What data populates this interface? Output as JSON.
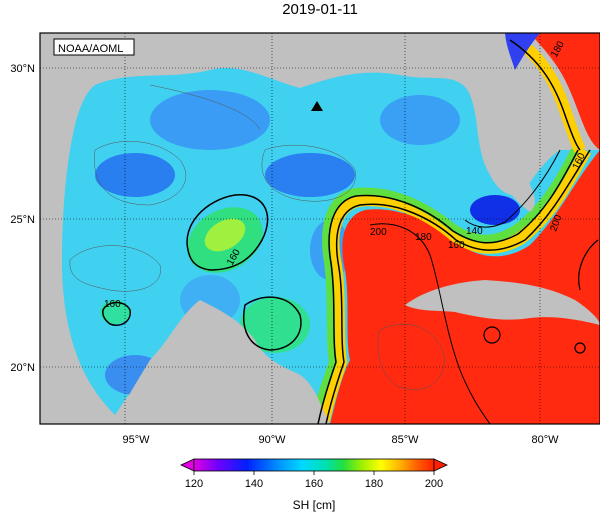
{
  "title": "2019-01-11",
  "credit": "NOAA/AOML",
  "lat_labels": [
    "30°N",
    "25°N",
    "20°N"
  ],
  "lon_labels": [
    "95°W",
    "90°W",
    "85°W",
    "80°W"
  ],
  "contour_labels": [
    "180",
    "160",
    "140",
    "160",
    "180",
    "200",
    "200",
    "160",
    "160"
  ],
  "colorbar": {
    "title": "SH [cm]",
    "ticks": [
      "120",
      "140",
      "160",
      "180",
      "200"
    ],
    "colors": [
      "#e000e0",
      "#7000ff",
      "#0020ff",
      "#0090ff",
      "#00d8ff",
      "#00e0b0",
      "#20e040",
      "#a0f000",
      "#ffff00",
      "#ffb000",
      "#ff6000",
      "#ff2000"
    ]
  },
  "colors": {
    "land": "#c0c0c0",
    "blue_region": "#2080f0",
    "cyan_region": "#40d0f0",
    "warm_region": "#ff2a10"
  }
}
